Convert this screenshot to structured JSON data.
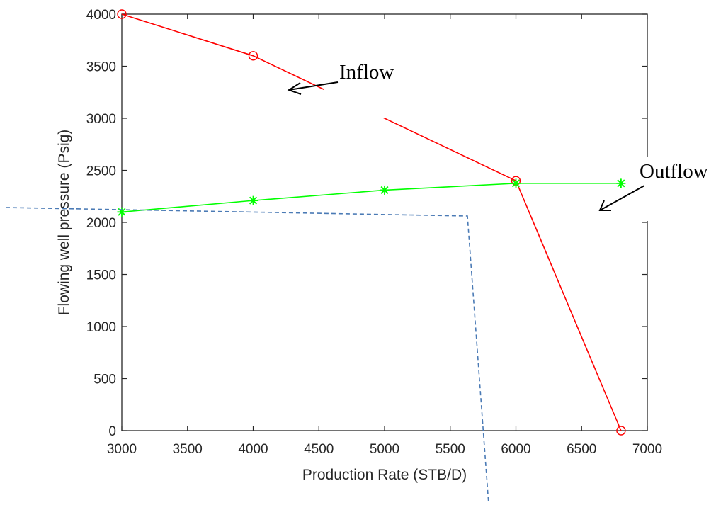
{
  "chart_data": {
    "type": "line",
    "xlabel": "Production Rate (STB/D)",
    "ylabel": "Flowing well pressure (Psig)",
    "xlim": [
      3000,
      7000
    ],
    "ylim": [
      0,
      4000
    ],
    "xticks": [
      3000,
      3500,
      4000,
      4500,
      5000,
      5500,
      6000,
      6500,
      7000
    ],
    "yticks": [
      0,
      500,
      1000,
      1500,
      2000,
      2500,
      3000,
      3500,
      4000
    ],
    "grid": false,
    "series": [
      {
        "color": "#ff0000",
        "marker": "circle",
        "x": [
          3000,
          4000,
          6000,
          6800
        ],
        "y": [
          4000,
          3600,
          2400,
          0
        ]
      },
      {
        "color": "#00ff00",
        "marker": "asterisk",
        "x": [
          3000,
          4000,
          5000,
          6000,
          6800
        ],
        "y": [
          2100,
          2210,
          2310,
          2375,
          2375
        ]
      }
    ],
    "annotations": [
      {
        "text": "Inflow",
        "arrow_color": "#000000"
      },
      {
        "text": "Outflow",
        "arrow_color": "#000000"
      }
    ],
    "overlay_dashed_line_color": "#4a7ab5"
  }
}
